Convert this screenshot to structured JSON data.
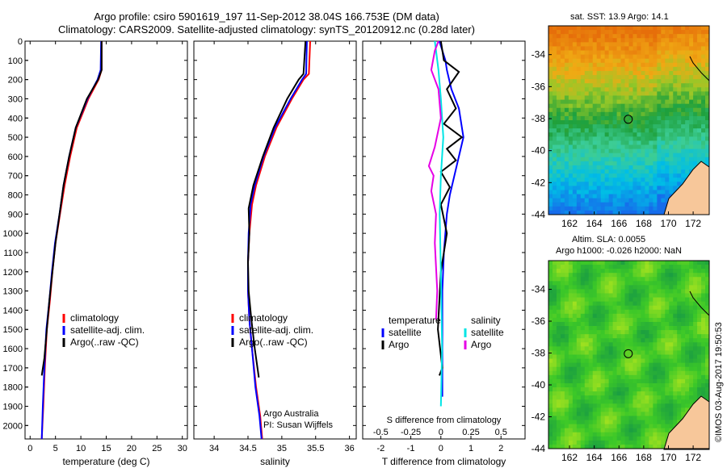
{
  "title_line1": "Argo profile: csiro 5901619_197 11-Sep-2012 38.04S 166.753E (DM data)",
  "title_line2": "Climatology: CARS2009. Satellite-adjusted climatology: synTS_20120912.nc (0.28d later)",
  "sst_label": "sat. SST: 13.9 Argo: 14.1",
  "sla_label1": "Altim. SLA: 0.0055",
  "sla_label2": "Argo h1000: -0.026 h2000: NaN",
  "credit": "©IMOS 03-Aug-2017 19:50:53",
  "pi_line1": "Argo Australia",
  "pi_line2": "PI: Susan Wijffels",
  "legend_labels": [
    "climatology",
    "satellite-adj. clim.",
    "Argo(..raw -QC)"
  ],
  "diff_legend": {
    "temp_header": "temperature",
    "sal_header": "salinity",
    "satellite": "satellite",
    "argo": "Argo"
  },
  "colors": {
    "climatology": "#ff0000",
    "satellite": "#0000ff",
    "argo": "#000000",
    "sal_satellite": "#00e5e5",
    "sal_argo": "#e600e6",
    "marker": "#000000"
  },
  "chart_data": [
    {
      "type": "line",
      "xlabel": "temperature (deg C)",
      "ylabel": "",
      "xlim": [
        -1,
        31
      ],
      "ylim": [
        2070,
        0
      ],
      "xticks": [
        "0",
        "5",
        "10",
        "15",
        "20",
        "25",
        "30"
      ],
      "yticks": [
        "0",
        "100",
        "200",
        "300",
        "400",
        "500",
        "600",
        "700",
        "800",
        "900",
        "1000",
        "1100",
        "1200",
        "1300",
        "1400",
        "1500",
        "1600",
        "1700",
        "1800",
        "1900",
        "2000"
      ],
      "series": [
        {
          "name": "climatology",
          "x": [
            14.1,
            14.1,
            13.5,
            11.5,
            9.2,
            7.9,
            6.8,
            5.9,
            5.0,
            4.4,
            3.9,
            3.3,
            2.9,
            2.6,
            2.3
          ],
          "y": [
            0,
            150,
            200,
            300,
            450,
            600,
            750,
            900,
            1050,
            1200,
            1350,
            1500,
            1700,
            1900,
            2070
          ]
        },
        {
          "name": "satellite-adj. clim.",
          "x": [
            14.0,
            13.9,
            13.3,
            11.3,
            9.0,
            7.7,
            6.6,
            5.8,
            4.9,
            4.3,
            3.8,
            3.2,
            2.8,
            2.5,
            2.3
          ],
          "y": [
            0,
            150,
            200,
            300,
            450,
            600,
            750,
            900,
            1050,
            1200,
            1350,
            1500,
            1700,
            1900,
            2070
          ]
        },
        {
          "name": "Argo(..raw -QC)",
          "x": [
            14.1,
            14.1,
            13.4,
            11.2,
            9.0,
            7.7,
            6.6,
            5.8,
            5.0,
            4.4,
            3.8,
            3.3,
            2.8,
            2.3
          ],
          "y": [
            0,
            150,
            200,
            300,
            450,
            600,
            750,
            900,
            1050,
            1200,
            1350,
            1500,
            1650,
            1740
          ]
        }
      ]
    },
    {
      "type": "line",
      "xlabel": "salinity",
      "ylabel": "",
      "xlim": [
        33.7,
        36.1
      ],
      "ylim": [
        2070,
        0
      ],
      "xticks": [
        "34",
        "34.5",
        "35",
        "35.5",
        "36"
      ],
      "series": [
        {
          "name": "climatology",
          "x": [
            35.42,
            35.4,
            35.32,
            35.15,
            34.92,
            34.75,
            34.62,
            34.56,
            34.52,
            34.5,
            34.5,
            34.52,
            34.56,
            34.62,
            34.68,
            34.71
          ],
          "y": [
            0,
            170,
            200,
            300,
            450,
            600,
            750,
            850,
            1000,
            1150,
            1300,
            1450,
            1600,
            1800,
            1950,
            2070
          ]
        },
        {
          "name": "satellite-adj. clim.",
          "x": [
            35.37,
            35.36,
            35.3,
            35.13,
            34.9,
            34.73,
            34.6,
            34.54,
            34.51,
            34.5,
            34.5,
            34.52,
            34.56,
            34.61,
            34.67,
            34.7
          ],
          "y": [
            0,
            170,
            200,
            300,
            450,
            600,
            750,
            850,
            1000,
            1150,
            1300,
            1450,
            1600,
            1800,
            1950,
            2070
          ]
        },
        {
          "name": "Argo(..raw -QC)",
          "x": [
            35.35,
            35.32,
            35.25,
            35.08,
            34.88,
            34.72,
            34.58,
            34.51,
            34.52,
            34.5,
            34.51,
            34.55,
            34.6,
            34.66
          ],
          "y": [
            0,
            170,
            200,
            300,
            450,
            600,
            750,
            870,
            1000,
            1150,
            1300,
            1450,
            1600,
            1750
          ]
        }
      ]
    },
    {
      "type": "line",
      "xlabel": "T difference from climatology",
      "xlabel2": "S difference from climatology",
      "ylabel": "",
      "xlim": [
        -2.6,
        2.8
      ],
      "ylim": [
        2070,
        0
      ],
      "xticks": [
        "-2",
        "-1",
        "0",
        "1",
        "2"
      ],
      "x2ticks": [
        "-0.5",
        "-0.25",
        "0",
        "0.25",
        "0.5"
      ],
      "x2lim": [
        -0.65,
        0.7
      ],
      "series": [
        {
          "name": "temperature satellite",
          "x": [
            -0.05,
            0.15,
            0.2,
            0.35,
            0.6,
            0.75,
            0.6,
            0.45,
            0.3,
            0.2,
            0.1,
            0.05,
            0.05,
            0.05,
            0.05
          ],
          "y": [
            0,
            100,
            150,
            250,
            350,
            500,
            600,
            700,
            800,
            900,
            1100,
            1300,
            1500,
            1700,
            1850
          ]
        },
        {
          "name": "temperature Argo",
          "x": [
            0.0,
            0.1,
            0.6,
            0.2,
            0.5,
            0.1,
            0.7,
            0.2,
            0.5,
            0.0,
            0.3,
            0.0,
            0.2,
            0.0,
            -0.1,
            0.05,
            -0.05
          ],
          "y": [
            0,
            100,
            160,
            250,
            350,
            430,
            500,
            560,
            620,
            680,
            760,
            850,
            1000,
            1200,
            1500,
            1700,
            1740
          ]
        },
        {
          "name": "salinity satellite",
          "x": [
            -0.05,
            -0.02,
            0.0,
            0.02,
            0.0,
            -0.01,
            0.0,
            0.01,
            0.0
          ],
          "y": [
            0,
            150,
            300,
            500,
            700,
            900,
            1200,
            1600,
            1900
          ]
        },
        {
          "name": "salinity Argo",
          "x": [
            -0.02,
            -0.05,
            -0.08,
            -0.02,
            0.0,
            -0.05,
            -0.1,
            -0.06,
            -0.08,
            -0.04,
            -0.05,
            -0.03,
            -0.04
          ],
          "y": [
            0,
            50,
            150,
            250,
            400,
            550,
            650,
            700,
            780,
            900,
            1050,
            1300,
            1450
          ]
        }
      ]
    },
    {
      "type": "heatmap",
      "title": "sat. SST: 13.9 Argo: 14.1",
      "xlim": [
        160.3,
        173.3
      ],
      "ylim": [
        -44,
        -32.2
      ],
      "xticks": [
        "162",
        "164",
        "166",
        "168",
        "170",
        "172"
      ],
      "yticks": [
        "-34",
        "-36",
        "-38",
        "-40",
        "-42",
        "-44"
      ],
      "marker": {
        "x": 166.753,
        "y": -38.04
      }
    },
    {
      "type": "heatmap",
      "title": "Altim. SLA: 0.0055",
      "xlim": [
        160.3,
        173.3
      ],
      "ylim": [
        -44,
        -32.2
      ],
      "xticks": [
        "162",
        "164",
        "166",
        "168",
        "170",
        "172"
      ],
      "yticks": [
        "-34",
        "-36",
        "-38",
        "-40",
        "-42",
        "-44"
      ],
      "marker": {
        "x": 166.753,
        "y": -38.04
      }
    }
  ]
}
